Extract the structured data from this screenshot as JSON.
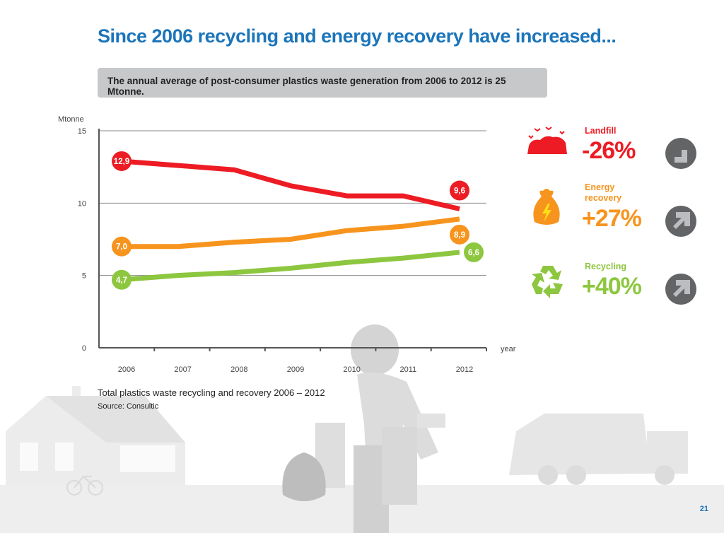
{
  "title": "Since 2006 recycling and energy recovery have increased...",
  "banner": "The annual average of post-consumer plastics waste generation from 2006 to 2012 is 25 Mtonne.",
  "caption": "Total plastics waste recycling and recovery 2006 – 2012",
  "source": "Source: Consultic",
  "page_number": "21",
  "chart_data": {
    "type": "line",
    "ylabel": "Mtonne",
    "xlabel": "year",
    "ylim": [
      0,
      15
    ],
    "yticks": [
      "0",
      "5",
      "10",
      "15"
    ],
    "categories": [
      "2006",
      "2007",
      "2008",
      "2009",
      "2010",
      "2011",
      "2012"
    ],
    "grid": true,
    "series": [
      {
        "key": "landfill",
        "color": "#ed1c24",
        "values": [
          12.9,
          12.6,
          12.3,
          11.2,
          10.5,
          10.5,
          9.6
        ],
        "start_label": "12,9",
        "end_label": "9,6"
      },
      {
        "key": "energy",
        "color": "#f7941d",
        "values": [
          7.0,
          7.0,
          7.3,
          7.5,
          8.1,
          8.4,
          8.9
        ],
        "start_label": "7,0",
        "end_label": "8,9"
      },
      {
        "key": "recycling",
        "color": "#8dc63f",
        "values": [
          4.7,
          5.0,
          5.2,
          5.5,
          5.9,
          6.2,
          6.6
        ],
        "start_label": "4,7",
        "end_label": "6,6"
      }
    ]
  },
  "summary": [
    {
      "label": "Landfill",
      "change": "-26%",
      "color": "#ed1c24",
      "icon": "landfill-icon",
      "arrow": "arrow-down-right"
    },
    {
      "label": "Energy recovery",
      "label_lines": [
        "Energy",
        "recovery"
      ],
      "change": "+27%",
      "color": "#f7941d",
      "icon": "energy-bag-icon",
      "arrow": "arrow-up-right"
    },
    {
      "label": "Recycling",
      "change": "+40%",
      "color": "#8dc63f",
      "icon": "recycle-icon",
      "arrow": "arrow-up-right"
    }
  ],
  "colors": {
    "title": "#1b75bb",
    "banner": "#c7c8ca",
    "arrow_circle": "#636466",
    "arrow": "#bcbdc0"
  }
}
